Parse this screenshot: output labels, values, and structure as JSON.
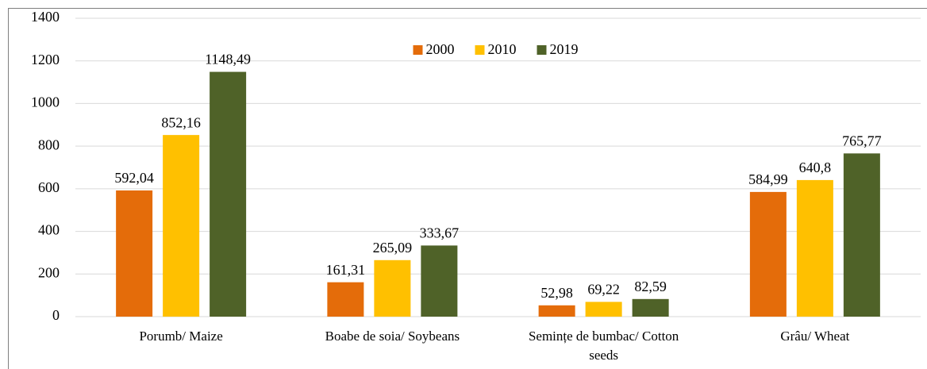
{
  "chart_data": {
    "type": "bar",
    "categories": [
      "Porumb/ Maize",
      "Boabe de soia/ Soybeans",
      "Semințe de bumbac/ Cotton seeds",
      "Grâu/ Wheat"
    ],
    "series": [
      {
        "name": "2000",
        "color": "#e46c0a",
        "values": [
          592.04,
          161.31,
          52.98,
          584.99
        ],
        "value_labels": [
          "592,04",
          "161,31",
          "52,98",
          "584,99"
        ]
      },
      {
        "name": "2010",
        "color": "#ffc000",
        "values": [
          852.16,
          265.09,
          69.22,
          640.8
        ],
        "value_labels": [
          "852,16",
          "265,09",
          "69,22",
          "640,8"
        ]
      },
      {
        "name": "2019",
        "color": "#4f6228",
        "values": [
          1148.49,
          333.67,
          82.59,
          765.77
        ],
        "value_labels": [
          "1148,49",
          "333,67",
          "82,59",
          "765,77"
        ]
      }
    ],
    "ylim": [
      0,
      1400
    ],
    "yticks": [
      0,
      200,
      400,
      600,
      800,
      1000,
      1200,
      1400
    ],
    "grid": true,
    "legend": "top"
  }
}
